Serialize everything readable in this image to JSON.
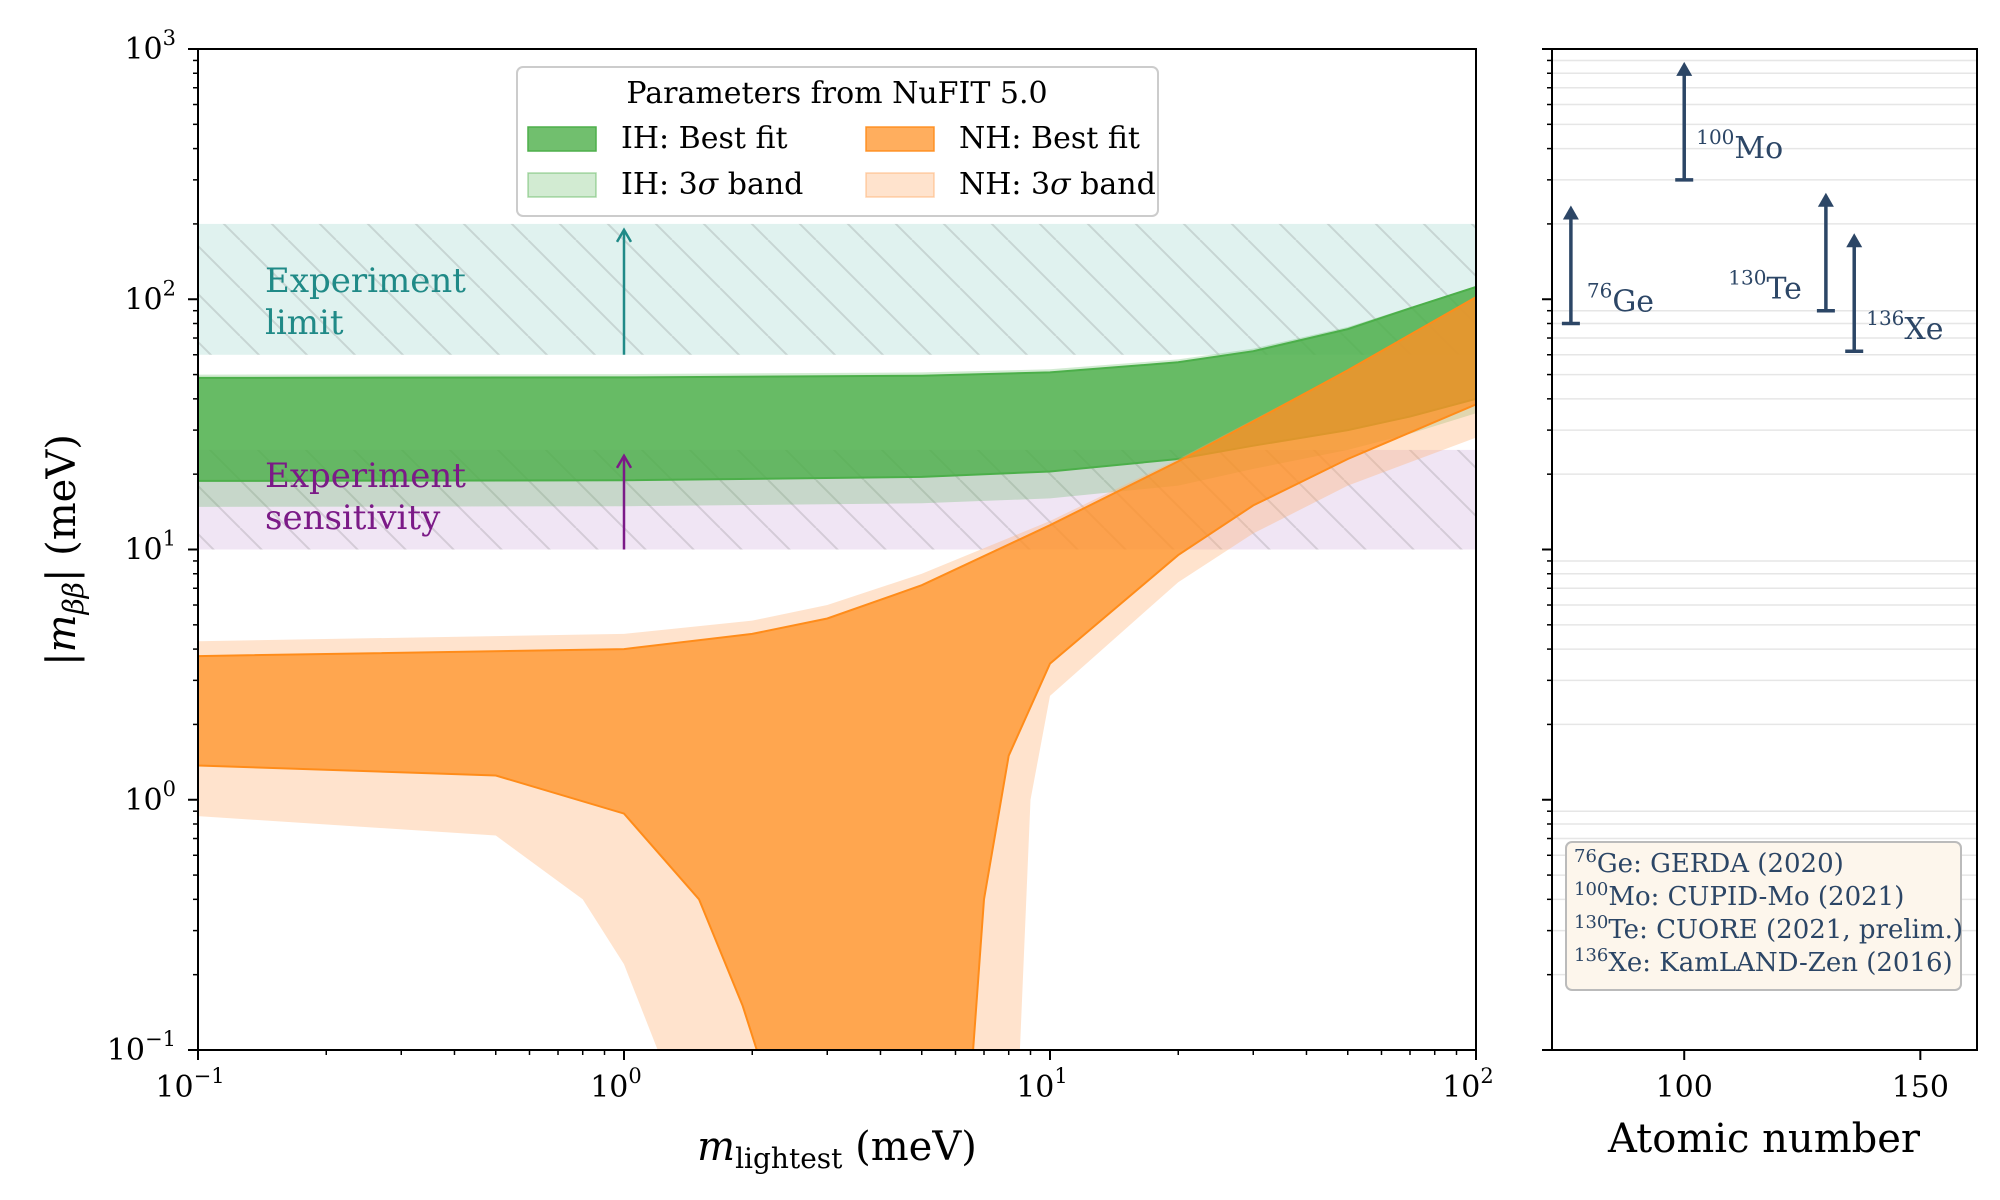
{
  "chart_data": [
    {
      "type": "area",
      "xlabel_base": "m",
      "xlabel_sub": "lightest",
      "xlabel_unit": "(meV)",
      "ylabel_base": "|m",
      "ylabel_sub": "ββ",
      "ylabel_unit": "| (meV)",
      "xscale": "log",
      "yscale": "log",
      "xlim": [
        0.1,
        100
      ],
      "ylim": [
        0.1,
        1000
      ],
      "x_ticks": [
        {
          "base": "10",
          "exp": "−1",
          "value": 0.1
        },
        {
          "base": "10",
          "exp": "0",
          "value": 1
        },
        {
          "base": "10",
          "exp": "1",
          "value": 10
        },
        {
          "base": "10",
          "exp": "2",
          "value": 100
        }
      ],
      "y_ticks": [
        {
          "base": "10",
          "exp": "−1",
          "value": 0.1
        },
        {
          "base": "10",
          "exp": "0",
          "value": 1
        },
        {
          "base": "10",
          "exp": "1",
          "value": 10
        },
        {
          "base": "10",
          "exp": "2",
          "value": 100
        },
        {
          "base": "10",
          "exp": "3",
          "value": 1000
        }
      ],
      "legend": {
        "title": "Parameters from NuFIT 5.0",
        "placement": "top-center",
        "entries": [
          {
            "label": "IH: Best fit",
            "color": "#4daf4a",
            "opacity": 0.8
          },
          {
            "label": "NH: Best fit",
            "color": "#ff8c1a",
            "opacity": 0.7
          },
          {
            "label_base": "IH: 3",
            "label_sigma": "σ",
            "label_rest": " band",
            "color": "#4daf4a",
            "opacity": 0.25
          },
          {
            "label_base": "NH: 3",
            "label_sigma": "σ",
            "label_rest": " band",
            "color": "#ffb070",
            "opacity": 0.35
          }
        ]
      },
      "bands": [
        {
          "name": "IH: Best fit",
          "color": "#4daf4a",
          "opacity": 0.8,
          "upper": [
            [
              0.1,
              48.5
            ],
            [
              1,
              48.7
            ],
            [
              5,
              49.5
            ],
            [
              10,
              51
            ],
            [
              20,
              56
            ],
            [
              30,
              62
            ],
            [
              50,
              76
            ],
            [
              70,
              92
            ],
            [
              100,
              112
            ]
          ],
          "lower": [
            [
              0.1,
              18.8
            ],
            [
              1,
              18.9
            ],
            [
              5,
              19.5
            ],
            [
              10,
              20.5
            ],
            [
              20,
              23
            ],
            [
              30,
              26
            ],
            [
              50,
              30
            ],
            [
              70,
              34
            ],
            [
              100,
              40
            ]
          ]
        },
        {
          "name": "IH: 3σ band",
          "color": "#4daf4a",
          "opacity": 0.25,
          "upper": [
            [
              0.1,
              50
            ],
            [
              1,
              50.2
            ],
            [
              5,
              51
            ],
            [
              10,
              52.5
            ],
            [
              20,
              57.5
            ],
            [
              30,
              63.5
            ],
            [
              50,
              77.5
            ],
            [
              70,
              93
            ],
            [
              100,
              113
            ]
          ],
          "lower": [
            [
              0.1,
              14.8
            ],
            [
              1,
              14.9
            ],
            [
              5,
              15.3
            ],
            [
              10,
              16
            ],
            [
              20,
              18
            ],
            [
              30,
              21
            ],
            [
              50,
              25
            ],
            [
              70,
              29
            ],
            [
              100,
              35
            ]
          ]
        },
        {
          "name": "NH: 3σ band",
          "color": "#ffb070",
          "opacity": 0.35,
          "upper": [
            [
              0.1,
              4.3
            ],
            [
              1,
              4.6
            ],
            [
              2,
              5.2
            ],
            [
              3,
              6
            ],
            [
              5,
              8
            ],
            [
              10,
              13
            ],
            [
              20,
              23
            ],
            [
              30,
              33
            ],
            [
              50,
              52
            ],
            [
              100,
              103
            ]
          ],
          "lower": [
            [
              0.1,
              0.86
            ],
            [
              0.5,
              0.72
            ],
            [
              0.8,
              0.4
            ],
            [
              1,
              0.22
            ],
            [
              1.2,
              0.1
            ],
            [
              8.5,
              0.1
            ],
            [
              9,
              1
            ],
            [
              10,
              2.6
            ],
            [
              20,
              7.4
            ],
            [
              30,
              11.6
            ],
            [
              50,
              18
            ],
            [
              100,
              28
            ]
          ]
        },
        {
          "name": "NH: Best fit",
          "color": "#ff8c1a",
          "opacity": 0.7,
          "upper": [
            [
              0.1,
              3.75
            ],
            [
              1,
              4
            ],
            [
              2,
              4.6
            ],
            [
              3,
              5.3
            ],
            [
              5,
              7.2
            ],
            [
              10,
              12.5
            ],
            [
              20,
              22.5
            ],
            [
              30,
              32.5
            ],
            [
              50,
              52
            ],
            [
              100,
              102
            ]
          ],
          "lower": [
            [
              0.1,
              1.37
            ],
            [
              0.5,
              1.25
            ],
            [
              1,
              0.88
            ],
            [
              1.5,
              0.4
            ],
            [
              1.9,
              0.15
            ],
            [
              2.05,
              0.1
            ],
            [
              6.6,
              0.1
            ],
            [
              7,
              0.4
            ],
            [
              8,
              1.5
            ],
            [
              10,
              3.5
            ],
            [
              20,
              9.5
            ],
            [
              30,
              15
            ],
            [
              50,
              23
            ],
            [
              100,
              38
            ]
          ]
        }
      ],
      "regions": [
        {
          "label_line1": "Experiment",
          "label_line2": "limit",
          "ymin": 60,
          "ymax": 200,
          "color": "#8fcfc7",
          "text_color": "#208a87",
          "arrow_x": 1
        },
        {
          "label_line1": "Experiment",
          "label_line2": "sensitivity",
          "ymin": 10,
          "ymax": 25,
          "color": "#c9a3d6",
          "text_color": "#7b1a87",
          "arrow_x": 1
        }
      ]
    },
    {
      "type": "scatter",
      "xlabel": "Atomic number",
      "xlim": [
        72,
        162
      ],
      "ylim": [
        0.1,
        1000
      ],
      "yscale": "log",
      "x_ticks": [
        100,
        150
      ],
      "color": "#2c4666",
      "points": [
        {
          "mass": "76",
          "element": "Ge",
          "z": 76,
          "y": 80
        },
        {
          "mass": "100",
          "element": "Mo",
          "z": 100,
          "y": 300
        },
        {
          "mass": "130",
          "element": "Te",
          "z": 130,
          "y": 90
        },
        {
          "mass": "136",
          "element": "Xe",
          "z": 136,
          "y": 62
        }
      ],
      "notes": [
        {
          "mass": "76",
          "text": "Ge: GERDA (2020)"
        },
        {
          "mass": "100",
          "text": "Mo: CUPID-Mo (2021)"
        },
        {
          "mass": "130",
          "text": "Te: CUORE (2021, prelim.)"
        },
        {
          "mass": "136",
          "text": "Xe: KamLAND-Zen (2016)"
        }
      ]
    }
  ]
}
